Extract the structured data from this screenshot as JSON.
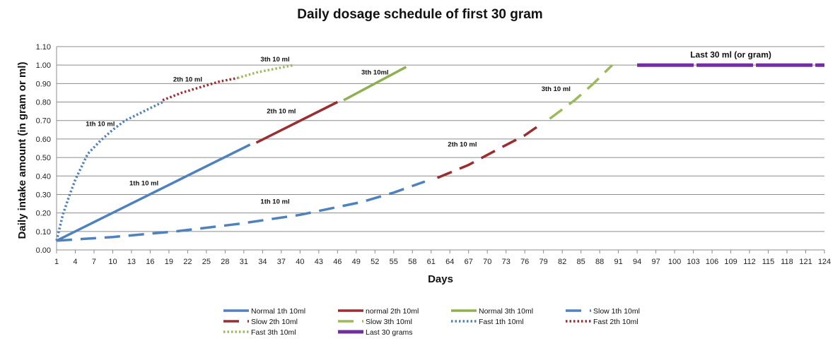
{
  "chart_data": {
    "type": "line",
    "title": "Daily dosage schedule of first 30 gram",
    "xlabel": "Days",
    "ylabel": "Daily intake amount (in gram or ml)",
    "xlim": [
      1,
      124
    ],
    "ylim": [
      0,
      1.1
    ],
    "grid": true,
    "legend_position": "bottom",
    "x_ticks": [
      "1",
      "4",
      "7",
      "10",
      "13",
      "16",
      "19",
      "22",
      "25",
      "28",
      "31",
      "34",
      "37",
      "40",
      "43",
      "46",
      "49",
      "52",
      "55",
      "58",
      "61",
      "64",
      "67",
      "70",
      "73",
      "76",
      "79",
      "82",
      "85",
      "88",
      "91",
      "94",
      "97",
      "100",
      "103",
      "106",
      "109",
      "112",
      "115",
      "118",
      "121",
      "124"
    ],
    "y_ticks": [
      "0.00",
      "0.10",
      "0.20",
      "0.30",
      "0.40",
      "0.50",
      "0.60",
      "0.70",
      "0.80",
      "0.90",
      "1.00",
      "1.10"
    ],
    "series": [
      {
        "name": "Normal 1th 10ml",
        "color": "#4F81BD",
        "dash": "solid",
        "x": [
          1,
          32
        ],
        "y": [
          0.05,
          0.57
        ]
      },
      {
        "name": "normal 2th 10ml",
        "color": "#9B2D30",
        "dash": "solid",
        "x": [
          33,
          46
        ],
        "y": [
          0.58,
          0.8
        ]
      },
      {
        "name": "Normal 3th 10ml",
        "color": "#8FB04F",
        "dash": "solid",
        "x": [
          47,
          57
        ],
        "y": [
          0.81,
          0.99
        ]
      },
      {
        "name": "Slow 1th 10ml",
        "color": "#4F81BD",
        "dash": "long",
        "x": [
          1,
          10,
          20,
          30,
          40,
          50,
          55,
          60
        ],
        "y": [
          0.05,
          0.07,
          0.1,
          0.14,
          0.19,
          0.26,
          0.31,
          0.37
        ]
      },
      {
        "name": "Slow 2th 10ml",
        "color": "#9B2D30",
        "dash": "long",
        "x": [
          62,
          67,
          72,
          76,
          79
        ],
        "y": [
          0.39,
          0.46,
          0.55,
          0.62,
          0.69
        ]
      },
      {
        "name": "Slow 3th 10ml",
        "color": "#9BBB59",
        "dash": "long",
        "x": [
          80,
          84,
          87,
          90
        ],
        "y": [
          0.71,
          0.81,
          0.9,
          1.0
        ]
      },
      {
        "name": "Fast 1th 10ml",
        "color": "#4F81BD",
        "dash": "dot",
        "x": [
          1,
          2,
          3,
          4,
          5,
          6,
          8,
          10,
          12,
          15,
          18
        ],
        "y": [
          0.05,
          0.19,
          0.29,
          0.38,
          0.45,
          0.52,
          0.59,
          0.65,
          0.7,
          0.75,
          0.8
        ]
      },
      {
        "name": "Fast 2th 10ml",
        "color": "#9B2D30",
        "dash": "dot",
        "x": [
          18,
          21,
          24,
          27,
          30
        ],
        "y": [
          0.81,
          0.85,
          0.88,
          0.91,
          0.93
        ]
      },
      {
        "name": "Fast 3th 10ml",
        "color": "#9BBB59",
        "dash": "dot",
        "x": [
          30,
          33,
          36,
          39
        ],
        "y": [
          0.93,
          0.96,
          0.98,
          1.0
        ]
      },
      {
        "name": "Last 30 grams",
        "color": "#7030A0",
        "dash": "segmented",
        "x": [
          94,
          124
        ],
        "y": [
          1.0,
          1.0
        ]
      }
    ],
    "annotations": [
      {
        "text": "1th 10 ml",
        "x": 15,
        "y": 0.35
      },
      {
        "text": "2th 10 ml",
        "x": 37,
        "y": 0.74
      },
      {
        "text": "3th 10ml",
        "x": 52,
        "y": 0.95
      },
      {
        "text": "1th 10 ml",
        "x": 8,
        "y": 0.67
      },
      {
        "text": "2th 10 ml",
        "x": 22,
        "y": 0.91
      },
      {
        "text": "3th 10 ml",
        "x": 36,
        "y": 1.02
      },
      {
        "text": "1th 10 ml",
        "x": 36,
        "y": 0.25
      },
      {
        "text": "2th 10 ml",
        "x": 66,
        "y": 0.56
      },
      {
        "text": "3th 10 ml",
        "x": 81,
        "y": 0.86
      },
      {
        "text": "Last 30 ml (or gram)",
        "x": 109,
        "y": 1.04
      }
    ]
  }
}
